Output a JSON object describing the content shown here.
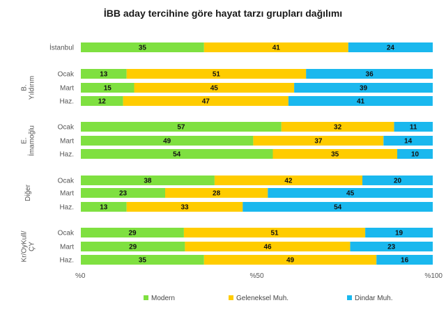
{
  "chart_data": {
    "type": "bar",
    "orientation": "horizontal",
    "stacked": true,
    "title": "İBB aday tercihine göre hayat tarzı grupları dağılımı",
    "xlim": [
      0,
      100
    ],
    "xticks": [
      "%0",
      "%50",
      "%100"
    ],
    "series": [
      {
        "name": "Modern",
        "color": "#7fe040"
      },
      {
        "name": "Geleneksel Muh.",
        "color": "#ffcc00"
      },
      {
        "name": "Dindar Muh.",
        "color": "#1ab8ee"
      }
    ],
    "groups": [
      {
        "label": "",
        "rows": [
          {
            "label": "İstanbul",
            "values": [
              35,
              41,
              24
            ]
          }
        ]
      },
      {
        "label": "B. Yıldırım",
        "rows": [
          {
            "label": "Ocak",
            "values": [
              13,
              51,
              36
            ]
          },
          {
            "label": "Mart",
            "values": [
              15,
              45,
              39
            ]
          },
          {
            "label": "Haz.",
            "values": [
              12,
              47,
              41
            ]
          }
        ]
      },
      {
        "label": "E. İmamoğlu",
        "rows": [
          {
            "label": "Ocak",
            "values": [
              57,
              32,
              11
            ]
          },
          {
            "label": "Mart",
            "values": [
              49,
              37,
              14
            ]
          },
          {
            "label": "Haz.",
            "values": [
              54,
              35,
              10
            ]
          }
        ]
      },
      {
        "label": "Diğer",
        "rows": [
          {
            "label": "Ocak",
            "values": [
              38,
              42,
              20
            ]
          },
          {
            "label": "Mart",
            "values": [
              23,
              28,
              45
            ]
          },
          {
            "label": "Haz.",
            "values": [
              13,
              33,
              54
            ]
          }
        ]
      },
      {
        "label": "Kr/OyKull/ ÇY",
        "rows": [
          {
            "label": "Ocak",
            "values": [
              29,
              51,
              19
            ]
          },
          {
            "label": "Mart",
            "values": [
              29,
              46,
              23
            ]
          },
          {
            "label": "Haz.",
            "values": [
              35,
              49,
              16
            ]
          }
        ]
      }
    ]
  }
}
